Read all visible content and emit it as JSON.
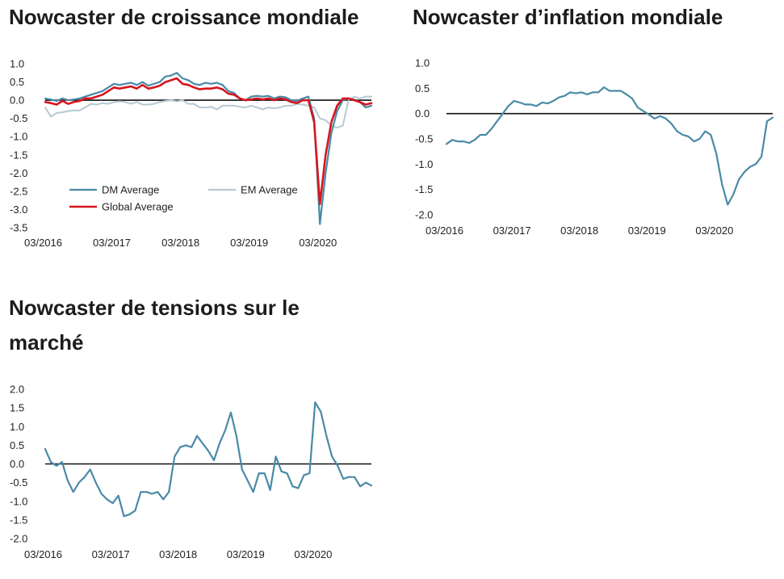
{
  "colors": {
    "dm": "#4a8aa6",
    "em": "#b5c9d3",
    "global": "#d8141e",
    "axis": "#111111"
  },
  "charts": [
    {
      "title": "Nowcaster de croissance mondiale",
      "chart_data": {
        "type": "line",
        "ylim": [
          -3.5,
          1.0
        ],
        "yticks": [
          "1.0",
          "0.5",
          "0.0",
          "-0.5",
          "-1.0",
          "-1.5",
          "-2.0",
          "-2.5",
          "-3.0",
          "-3.5"
        ],
        "xlim": [
          0,
          57
        ],
        "xticks": [
          {
            "i": 0,
            "label": "03/2016"
          },
          {
            "i": 12,
            "label": "03/2017"
          },
          {
            "i": 24,
            "label": "03/2018"
          },
          {
            "i": 36,
            "label": "03/2019"
          },
          {
            "i": 48,
            "label": "03/2020"
          }
        ],
        "legend": [
          {
            "key": "dm",
            "label": "DM Average"
          },
          {
            "key": "em",
            "label": "EM Average"
          },
          {
            "key": "global",
            "label": "Global Average"
          }
        ],
        "series": [
          {
            "key": "em",
            "name": "EM Average",
            "values": [
              -0.2,
              -0.45,
              -0.35,
              -0.33,
              -0.3,
              -0.28,
              -0.28,
              -0.2,
              -0.1,
              -0.12,
              -0.08,
              -0.1,
              -0.05,
              -0.03,
              -0.05,
              -0.1,
              -0.05,
              -0.12,
              -0.12,
              -0.1,
              -0.05,
              -0.02,
              0.0,
              -0.03,
              0.0,
              -0.1,
              -0.1,
              -0.2,
              -0.2,
              -0.18,
              -0.25,
              -0.15,
              -0.15,
              -0.15,
              -0.18,
              -0.2,
              -0.15,
              -0.2,
              -0.25,
              -0.2,
              -0.22,
              -0.2,
              -0.15,
              -0.15,
              -0.1,
              -0.12,
              -0.15,
              -0.2,
              -0.5,
              -0.55,
              -0.7,
              -0.75,
              -0.7,
              0.0,
              0.1,
              0.05,
              0.1,
              0.1
            ]
          },
          {
            "key": "dm",
            "name": "DM Average",
            "values": [
              0.05,
              0.02,
              -0.02,
              0.05,
              0.0,
              0.02,
              0.05,
              0.1,
              0.15,
              0.2,
              0.25,
              0.35,
              0.45,
              0.42,
              0.45,
              0.48,
              0.42,
              0.5,
              0.4,
              0.45,
              0.5,
              0.65,
              0.68,
              0.75,
              0.6,
              0.55,
              0.45,
              0.42,
              0.48,
              0.45,
              0.48,
              0.42,
              0.25,
              0.2,
              0.05,
              0.0,
              0.1,
              0.12,
              0.1,
              0.12,
              0.05,
              0.1,
              0.08,
              0.0,
              -0.02,
              0.05,
              0.1,
              -0.5,
              -3.4,
              -2.0,
              -0.9,
              -0.3,
              0.0,
              0.05,
              0.02,
              -0.05,
              -0.2,
              -0.15
            ]
          },
          {
            "key": "global",
            "name": "Global Average",
            "values": [
              -0.05,
              -0.08,
              -0.12,
              -0.02,
              -0.1,
              -0.05,
              -0.02,
              0.05,
              0.05,
              0.1,
              0.15,
              0.25,
              0.35,
              0.32,
              0.35,
              0.38,
              0.32,
              0.42,
              0.32,
              0.35,
              0.4,
              0.5,
              0.55,
              0.6,
              0.45,
              0.42,
              0.35,
              0.3,
              0.32,
              0.32,
              0.35,
              0.3,
              0.18,
              0.15,
              0.05,
              0.0,
              0.02,
              0.05,
              0.02,
              0.05,
              0.0,
              0.05,
              0.02,
              -0.05,
              -0.08,
              0.0,
              0.0,
              -0.6,
              -2.85,
              -1.5,
              -0.6,
              -0.15,
              0.05,
              0.05,
              0.0,
              -0.05,
              -0.12,
              -0.08
            ]
          }
        ]
      }
    },
    {
      "title": "Nowcaster d’inflation mondiale",
      "chart_data": {
        "type": "line",
        "ylim": [
          -2.0,
          1.0
        ],
        "yticks": [
          "1.0",
          "0.5",
          "0.0",
          "-0.5",
          "-1.0",
          "-1.5",
          "-2.0"
        ],
        "xlim": [
          0,
          58
        ],
        "xticks": [
          {
            "i": 0,
            "label": "03/2016"
          },
          {
            "i": 12,
            "label": "03/2017"
          },
          {
            "i": 24,
            "label": "03/2018"
          },
          {
            "i": 36,
            "label": "03/2019"
          },
          {
            "i": 48,
            "label": "03/2020"
          }
        ],
        "legend": [],
        "series": [
          {
            "key": "dm",
            "values": [
              -0.6,
              -0.52,
              -0.55,
              -0.55,
              -0.58,
              -0.52,
              -0.42,
              -0.42,
              -0.3,
              -0.15,
              0.0,
              0.15,
              0.25,
              0.22,
              0.18,
              0.18,
              0.15,
              0.22,
              0.2,
              0.25,
              0.32,
              0.35,
              0.42,
              0.4,
              0.42,
              0.38,
              0.42,
              0.42,
              0.52,
              0.45,
              0.45,
              0.45,
              0.38,
              0.3,
              0.12,
              0.05,
              -0.02,
              -0.1,
              -0.05,
              -0.1,
              -0.2,
              -0.35,
              -0.42,
              -0.45,
              -0.55,
              -0.5,
              -0.35,
              -0.42,
              -0.8,
              -1.4,
              -1.8,
              -1.6,
              -1.3,
              -1.15,
              -1.05,
              -1.0,
              -0.85,
              -0.15,
              -0.08
            ]
          }
        ]
      }
    },
    {
      "title": "Nowcaster de tensions sur le marché",
      "chart_data": {
        "type": "line",
        "ylim": [
          -2.0,
          2.0
        ],
        "yticks": [
          "2.0",
          "1.5",
          "1.0",
          "0.5",
          "0.0",
          "-0.5",
          "-1.0",
          "-1.5",
          "-2.0"
        ],
        "xlim": [
          0,
          58
        ],
        "xticks": [
          {
            "i": 0,
            "label": "03/2016"
          },
          {
            "i": 12,
            "label": "03/2017"
          },
          {
            "i": 24,
            "label": "03/2018"
          },
          {
            "i": 36,
            "label": "03/2019"
          },
          {
            "i": 48,
            "label": "03/2020"
          }
        ],
        "legend": [],
        "series": [
          {
            "key": "dm",
            "values": [
              0.4,
              0.05,
              -0.05,
              0.05,
              -0.45,
              -0.75,
              -0.5,
              -0.35,
              -0.15,
              -0.5,
              -0.8,
              -0.95,
              -1.05,
              -0.85,
              -1.4,
              -1.35,
              -1.25,
              -0.75,
              -0.75,
              -0.8,
              -0.75,
              -0.95,
              -0.75,
              0.2,
              0.45,
              0.5,
              0.45,
              0.75,
              0.55,
              0.35,
              0.1,
              0.55,
              0.9,
              1.38,
              0.75,
              -0.15,
              -0.45,
              -0.75,
              -0.25,
              -0.25,
              -0.7,
              0.2,
              -0.2,
              -0.25,
              -0.6,
              -0.65,
              -0.3,
              -0.25,
              1.65,
              1.4,
              0.75,
              0.2,
              -0.05,
              -0.4,
              -0.35,
              -0.35,
              -0.6,
              -0.5,
              -0.58
            ]
          }
        ]
      }
    }
  ]
}
